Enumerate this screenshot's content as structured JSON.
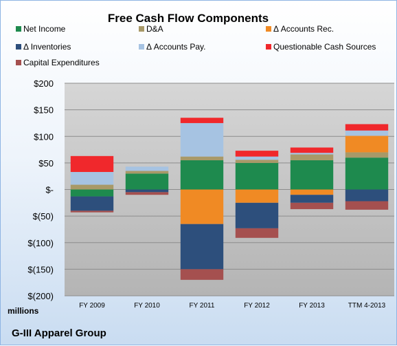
{
  "chart_data": {
    "type": "bar",
    "stacked": true,
    "title": "Free Cash Flow Components",
    "ylabel_units": "millions",
    "categories": [
      "FY 2009",
      "FY 2010",
      "FY 2011",
      "FY 2012",
      "FY 2013",
      "TTM 4-2013"
    ],
    "ylim": [
      -200,
      200
    ],
    "yticks": [
      200,
      150,
      100,
      50,
      0,
      -50,
      -100,
      -150,
      -200
    ],
    "ytick_labels": [
      "$200",
      "$150",
      "$100",
      "$50",
      "$-",
      "$(50)",
      "$(100)",
      "$(150)",
      "$(200)"
    ],
    "grid": true,
    "legend_position": "top",
    "series": [
      {
        "name": "Net Income",
        "color": "#1e8a4e",
        "values": [
          -13,
          30,
          55,
          50,
          55,
          60
        ]
      },
      {
        "name": "D&A",
        "color": "#a89968",
        "values": [
          9,
          5,
          7,
          6,
          11,
          10
        ]
      },
      {
        "name": "Δ Accounts Rec.",
        "color": "#f08a24",
        "values": [
          0,
          0,
          -65,
          -25,
          -10,
          31
        ]
      },
      {
        "name": "Δ Inventories",
        "color": "#2d4f7c",
        "values": [
          -27,
          -5,
          -85,
          -48,
          -15,
          -22
        ]
      },
      {
        "name": "Δ Accounts Pay.",
        "color": "#a6c3e2",
        "values": [
          24,
          8,
          63,
          6,
          3,
          10
        ]
      },
      {
        "name": "Questionable Cash Sources",
        "color": "#f0282c",
        "values": [
          30,
          0,
          10,
          11,
          10,
          12
        ]
      },
      {
        "name": "Capital Expenditures",
        "color": "#a5504f",
        "values": [
          -3,
          -5,
          -20,
          -18,
          -12,
          -16
        ]
      }
    ]
  },
  "footer": "G-III Apparel Group"
}
